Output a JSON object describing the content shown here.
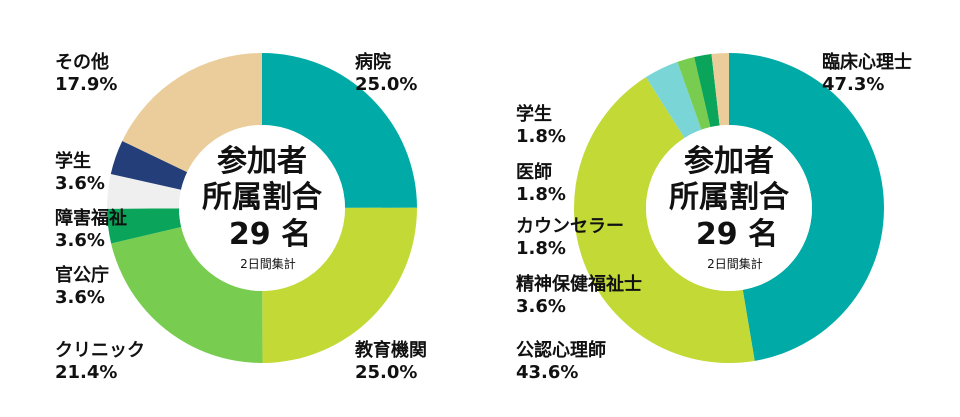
{
  "chart_data": [
    {
      "type": "pie",
      "center": {
        "title_line1": "参加者",
        "title_line2": "所属割合",
        "count": "29 名",
        "note": "2日間集計"
      },
      "slices": [
        {
          "label": "病院",
          "value_text": "25.0%",
          "value": 25.0,
          "color": "#00AAA6"
        },
        {
          "label": "教育機関",
          "value_text": "25.0%",
          "value": 25.0,
          "color": "#C2D936"
        },
        {
          "label": "クリニック",
          "value_text": "21.4%",
          "value": 21.4,
          "color": "#78CD50"
        },
        {
          "label": "官公庁",
          "value_text": "3.6%",
          "value": 3.6,
          "color": "#0AA55A"
        },
        {
          "label": "障害福祉",
          "value_text": "3.6%",
          "value": 3.6,
          "color": "#EFEFEF"
        },
        {
          "label": "学生",
          "value_text": "3.6%",
          "value": 3.6,
          "color": "#233E78"
        },
        {
          "label": "その他",
          "value_text": "17.9%",
          "value": 17.9,
          "color": "#EBCD9B"
        }
      ]
    },
    {
      "type": "pie",
      "center": {
        "title_line1": "参加者",
        "title_line2": "所属割合",
        "count": "29 名",
        "note": "2日間集計"
      },
      "slices": [
        {
          "label": "臨床心理士",
          "value_text": "47.3%",
          "value": 47.3,
          "color": "#00AAA6"
        },
        {
          "label": "公認心理師",
          "value_text": "43.6%",
          "value": 43.6,
          "color": "#C2D936"
        },
        {
          "label": "精神保健福祉士",
          "value_text": "3.6%",
          "value": 3.6,
          "color": "#7AD6D6"
        },
        {
          "label": "カウンセラー",
          "value_text": "1.8%",
          "value": 1.8,
          "color": "#78CD50"
        },
        {
          "label": "医師",
          "value_text": "1.8%",
          "value": 1.8,
          "color": "#0AA55A"
        },
        {
          "label": "学生",
          "value_text": "1.8%",
          "value": 1.8,
          "color": "#EBCD9B"
        }
      ]
    }
  ]
}
